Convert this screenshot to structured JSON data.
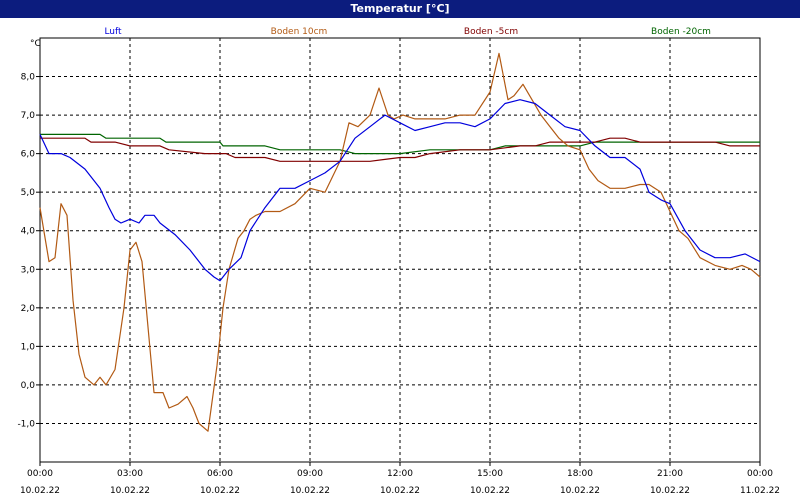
{
  "window": {
    "title": "Temperatur [°C]"
  },
  "chart_data": {
    "type": "line",
    "title": "Temperatur [°C]",
    "ylabel": "°C",
    "xlabel": "",
    "ylim": [
      -2.0,
      9.0
    ],
    "xlim": [
      0,
      24
    ],
    "grid": true,
    "legend_position": "top",
    "y_ticks": [
      -1.0,
      0.0,
      1.0,
      2.0,
      3.0,
      4.0,
      5.0,
      6.0,
      7.0,
      8.0
    ],
    "y_tick_labels": [
      "-1,0",
      "0,0",
      "1,0",
      "2,0",
      "3,0",
      "4,0",
      "5,0",
      "6,0",
      "7,0",
      "8,0"
    ],
    "x_ticks": [
      {
        "time": "00:00",
        "date": "10.02.22"
      },
      {
        "time": "03:00",
        "date": "10.02.22"
      },
      {
        "time": "06:00",
        "date": "10.02.22"
      },
      {
        "time": "09:00",
        "date": "10.02.22"
      },
      {
        "time": "12:00",
        "date": "10.02.22"
      },
      {
        "time": "15:00",
        "date": "10.02.22"
      },
      {
        "time": "18:00",
        "date": "10.02.22"
      },
      {
        "time": "21:00",
        "date": "10.02.22"
      },
      {
        "time": "00:00",
        "date": "11.02.22"
      }
    ],
    "series": [
      {
        "name": "Luft",
        "color": "#0000dd",
        "x": [
          0,
          0.3,
          0.7,
          1.0,
          1.5,
          2.0,
          2.3,
          2.5,
          2.7,
          3.0,
          3.3,
          3.5,
          3.8,
          4.0,
          4.5,
          5.0,
          5.5,
          5.8,
          6.0,
          6.3,
          6.7,
          7.0,
          7.5,
          8.0,
          8.5,
          9.0,
          9.5,
          10.0,
          10.5,
          11.0,
          11.5,
          12.0,
          12.5,
          13.0,
          13.5,
          14.0,
          14.5,
          15.0,
          15.5,
          16.0,
          16.5,
          17.0,
          17.5,
          18.0,
          18.5,
          19.0,
          19.5,
          20.0,
          20.3,
          20.7,
          21.0,
          21.5,
          22.0,
          22.5,
          23.0,
          23.5,
          24.0
        ],
        "y": [
          6.5,
          6.0,
          6.0,
          5.9,
          5.6,
          5.1,
          4.6,
          4.3,
          4.2,
          4.3,
          4.2,
          4.4,
          4.4,
          4.2,
          3.9,
          3.5,
          3.0,
          2.8,
          2.7,
          3.0,
          3.3,
          4.0,
          4.6,
          5.1,
          5.1,
          5.3,
          5.5,
          5.8,
          6.4,
          6.7,
          7.0,
          6.8,
          6.6,
          6.7,
          6.8,
          6.8,
          6.7,
          6.9,
          7.3,
          7.4,
          7.3,
          7.0,
          6.7,
          6.6,
          6.2,
          5.9,
          5.9,
          5.6,
          5.0,
          4.8,
          4.7,
          4.0,
          3.5,
          3.3,
          3.3,
          3.4,
          3.2
        ]
      },
      {
        "name": "Boden 10cm",
        "color": "#b25a14",
        "x": [
          0,
          0.3,
          0.5,
          0.7,
          0.9,
          1.1,
          1.3,
          1.5,
          1.8,
          2.0,
          2.2,
          2.5,
          2.8,
          3.0,
          3.2,
          3.4,
          3.6,
          3.8,
          4.1,
          4.3,
          4.6,
          4.9,
          5.1,
          5.3,
          5.6,
          5.9,
          6.1,
          6.3,
          6.6,
          6.8,
          7.0,
          7.2,
          7.5,
          8.0,
          8.5,
          9.0,
          9.5,
          10.0,
          10.3,
          10.6,
          11.0,
          11.3,
          11.6,
          11.8,
          12.1,
          12.5,
          13.0,
          13.5,
          14.0,
          14.5,
          15.0,
          15.3,
          15.6,
          15.8,
          16.1,
          16.4,
          16.7,
          17.0,
          17.3,
          17.6,
          18.0,
          18.3,
          18.6,
          19.0,
          19.5,
          20.0,
          20.3,
          20.7,
          21.0,
          21.3,
          21.6,
          22.0,
          22.5,
          23.0,
          23.4,
          23.7,
          24.0
        ],
        "y": [
          4.6,
          3.2,
          3.3,
          4.7,
          4.4,
          2.2,
          0.8,
          0.2,
          0.0,
          0.2,
          0.0,
          0.4,
          2.0,
          3.5,
          3.7,
          3.2,
          1.5,
          -0.2,
          -0.2,
          -0.6,
          -0.5,
          -0.3,
          -0.6,
          -1.0,
          -1.2,
          0.5,
          2.0,
          3.0,
          3.8,
          4.0,
          4.3,
          4.4,
          4.5,
          4.5,
          4.7,
          5.1,
          5.0,
          5.8,
          6.8,
          6.7,
          7.0,
          7.7,
          7.0,
          6.9,
          7.0,
          6.9,
          6.9,
          6.9,
          7.0,
          7.0,
          7.6,
          8.6,
          7.4,
          7.5,
          7.8,
          7.4,
          7.0,
          6.7,
          6.4,
          6.2,
          6.1,
          5.6,
          5.3,
          5.1,
          5.1,
          5.2,
          5.2,
          5.0,
          4.5,
          4.0,
          3.8,
          3.3,
          3.1,
          3.0,
          3.1,
          3.0,
          2.8
        ]
      },
      {
        "name": "Boden -5cm",
        "color": "#800000",
        "x": [
          0,
          1.5,
          1.7,
          2.5,
          3.0,
          4.0,
          4.3,
          5.5,
          6.2,
          6.5,
          7.5,
          8.0,
          9.0,
          10.0,
          11.0,
          12.0,
          12.5,
          13.0,
          14.0,
          15.0,
          16.0,
          16.5,
          17.0,
          18.0,
          18.5,
          19.0,
          19.5,
          20.0,
          21.0,
          22.0,
          22.5,
          23.0,
          24.0
        ],
        "y": [
          6.4,
          6.4,
          6.3,
          6.3,
          6.2,
          6.2,
          6.1,
          6.0,
          6.0,
          5.9,
          5.9,
          5.8,
          5.8,
          5.8,
          5.8,
          5.9,
          5.9,
          6.0,
          6.1,
          6.1,
          6.2,
          6.2,
          6.3,
          6.3,
          6.3,
          6.4,
          6.4,
          6.3,
          6.3,
          6.3,
          6.3,
          6.2,
          6.2
        ]
      },
      {
        "name": "Boden -20cm",
        "color": "#006400",
        "x": [
          0,
          1.0,
          2.0,
          2.2,
          3.0,
          4.0,
          4.2,
          5.0,
          6.0,
          6.1,
          7.5,
          8.0,
          9.0,
          10.0,
          10.5,
          11.0,
          12.0,
          13.0,
          14.0,
          15.0,
          15.5,
          16.0,
          17.0,
          18.0,
          18.5,
          19.0,
          20.0,
          21.0,
          22.0,
          23.0,
          24.0
        ],
        "y": [
          6.5,
          6.5,
          6.5,
          6.4,
          6.4,
          6.4,
          6.3,
          6.3,
          6.3,
          6.2,
          6.2,
          6.1,
          6.1,
          6.1,
          6.0,
          6.0,
          6.0,
          6.1,
          6.1,
          6.1,
          6.2,
          6.2,
          6.2,
          6.2,
          6.3,
          6.3,
          6.3,
          6.3,
          6.3,
          6.3,
          6.3
        ]
      }
    ]
  }
}
